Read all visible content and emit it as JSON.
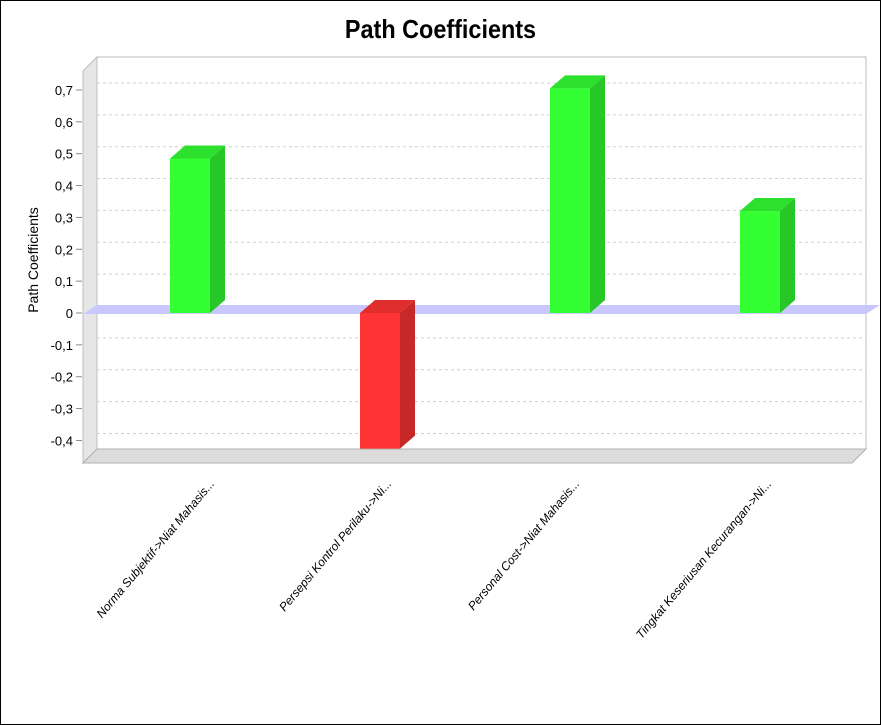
{
  "chart_data": {
    "type": "bar",
    "title": "Path Coefficients",
    "ylabel": "Path Coefficients",
    "xlabel": "",
    "categories": [
      "Norma Subjektif->Niat Mahasis...",
      "Persepsi Kontrol Perilaku->Ni...",
      "Personal Cost->Niat Mahasis...",
      "Tingkat Keseriusan Kecurangan->Ni..."
    ],
    "values": [
      0.485,
      -0.41,
      0.705,
      0.32
    ],
    "ylim": [
      -0.45,
      0.8
    ],
    "yticks": [
      0.7,
      0.6,
      0.5,
      0.4,
      0.3,
      0.2,
      0.1,
      0,
      -0.1,
      -0.2,
      -0.3,
      -0.4
    ],
    "ytick_labels": [
      "0,7",
      "0,6",
      "0,5",
      "0,4",
      "0,3",
      "0,2",
      "0,1",
      "0",
      "-0,1",
      "-0,2",
      "-0,3",
      "-0,4"
    ],
    "grid": true,
    "positive_color": "#33ff33",
    "negative_color": "#ff3333",
    "zero_band_color": "#c8c8ff"
  }
}
